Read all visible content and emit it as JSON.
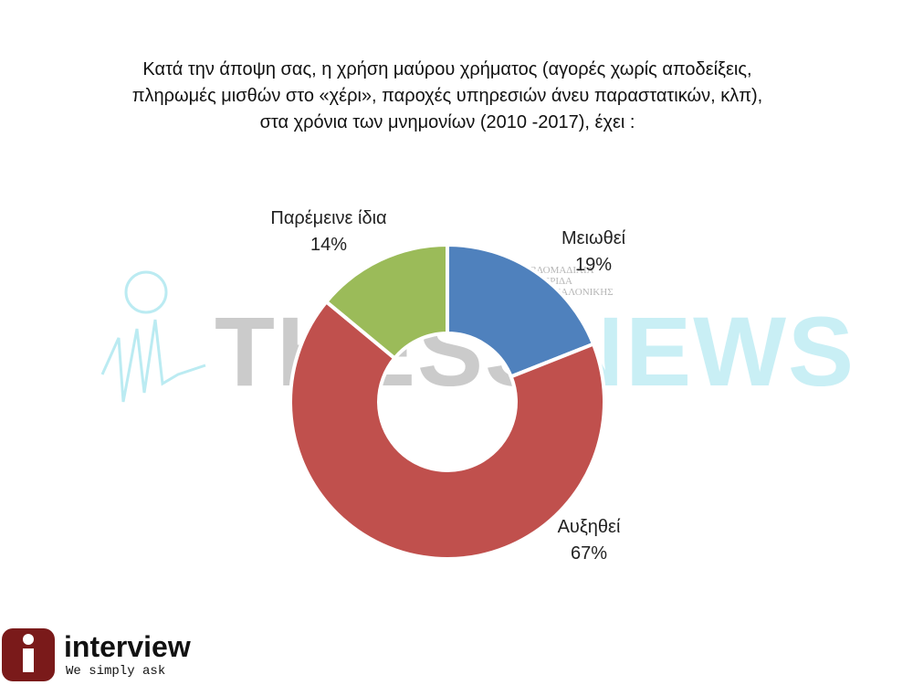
{
  "chart_data": {
    "type": "donut",
    "title": [
      "Κατά την άποψη σας, η χρήση μαύρου χρήματος (αγορές χωρίς αποδείξεις,",
      "πληρωμές μισθών στο «χέρι», παροχές υπηρεσιών άνευ παραστατικών, κλπ),",
      "στα χρόνια των μνημονίων (2010 -2017), έχει :"
    ],
    "categories": [
      "Μειωθεί",
      "Αυξηθεί",
      "Παρέμεινε ίδια"
    ],
    "values": [
      19,
      67,
      14
    ],
    "value_labels": [
      "19%",
      "67%",
      "14%"
    ],
    "colors": [
      "#4f81bd",
      "#c0504d",
      "#9bbb59"
    ]
  },
  "watermark": {
    "words": [
      "THESS",
      "NEWS"
    ],
    "tagline": [
      "Η ΕΒΔΟΜΑΔΙΑΙΑ",
      "ΕΦΗΜΕΡΙΔΑ",
      "ΤΗΣ ΘΕΣΣΑΛΟΝΙΚΗΣ"
    ]
  },
  "logo": {
    "name": "interview",
    "slogan": "We simply ask"
  }
}
